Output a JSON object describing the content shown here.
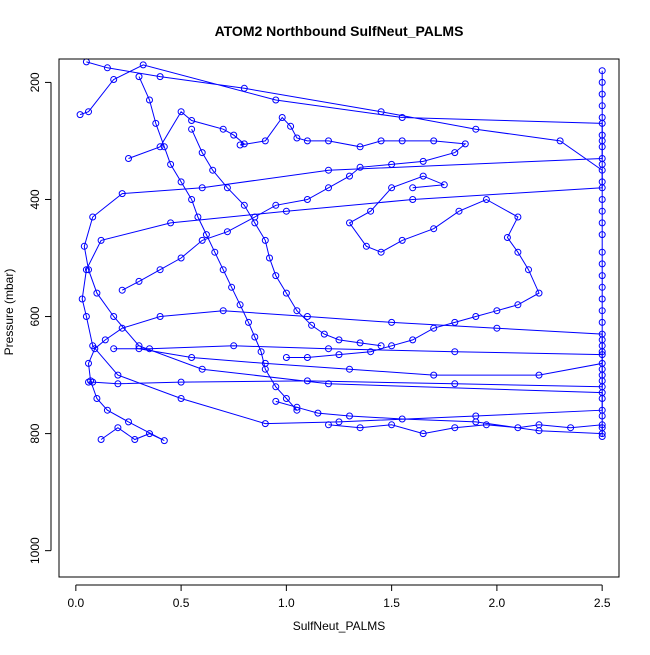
{
  "chart_data": {
    "type": "scatter",
    "title": "ATOM2 Northbound SulfNeut_PALMS",
    "xlabel": "SulfNeut_PALMS",
    "ylabel": "Pressure (mbar)",
    "xlim": [
      -0.08,
      2.58
    ],
    "ylim": [
      1045,
      160
    ],
    "y_reversed": true,
    "x_ticks": [
      "0.0",
      "0.5",
      "1.0",
      "1.5",
      "2.0",
      "2.5"
    ],
    "x_tick_values": [
      0.0,
      0.5,
      1.0,
      1.5,
      2.0,
      2.5
    ],
    "y_ticks": [
      "200",
      "400",
      "600",
      "800",
      "1000"
    ],
    "y_tick_values": [
      200,
      400,
      600,
      800,
      1000
    ],
    "grid": false,
    "legend": "none",
    "series_color": "#0000ff",
    "marker": "open-circle",
    "connected": true,
    "series": [
      {
        "values": [
          [
            0.02,
            255
          ],
          [
            0.06,
            250
          ],
          [
            0.18,
            195
          ],
          [
            0.32,
            170
          ],
          [
            0.95,
            230
          ],
          [
            1.55,
            260
          ],
          [
            2.5,
            270
          ],
          [
            2.5,
            300
          ],
          [
            2.5,
            330
          ],
          [
            1.2,
            350
          ],
          [
            0.6,
            380
          ],
          [
            0.22,
            390
          ],
          [
            0.08,
            430
          ],
          [
            0.04,
            480
          ],
          [
            0.06,
            520
          ],
          [
            0.1,
            560
          ],
          [
            0.18,
            600
          ],
          [
            0.3,
            650
          ],
          [
            0.6,
            690
          ],
          [
            1.2,
            715
          ],
          [
            2.5,
            730
          ],
          [
            2.5,
            760
          ],
          [
            1.9,
            770
          ],
          [
            1.25,
            780
          ],
          [
            0.9,
            783
          ],
          [
            0.5,
            740
          ],
          [
            0.2,
            700
          ],
          [
            0.08,
            650
          ],
          [
            0.05,
            600
          ],
          [
            0.03,
            570
          ],
          [
            0.05,
            520
          ],
          [
            0.12,
            470
          ],
          [
            0.45,
            440
          ],
          [
            1.0,
            420
          ],
          [
            1.6,
            400
          ],
          [
            2.5,
            380
          ],
          [
            2.5,
            350
          ],
          [
            2.3,
            300
          ],
          [
            1.9,
            280
          ],
          [
            1.45,
            250
          ],
          [
            0.8,
            210
          ],
          [
            0.4,
            190
          ],
          [
            0.15,
            175
          ],
          [
            0.05,
            165
          ]
        ]
      },
      {
        "values": [
          [
            0.12,
            810
          ],
          [
            0.2,
            790
          ],
          [
            0.28,
            810
          ],
          [
            0.35,
            800
          ],
          [
            0.42,
            812
          ],
          [
            0.25,
            780
          ],
          [
            0.15,
            760
          ],
          [
            0.1,
            740
          ],
          [
            0.07,
            710
          ],
          [
            0.06,
            680
          ],
          [
            0.09,
            655
          ],
          [
            0.14,
            640
          ],
          [
            0.22,
            620
          ],
          [
            0.4,
            600
          ],
          [
            0.7,
            590
          ],
          [
            1.1,
            600
          ],
          [
            1.5,
            610
          ],
          [
            2.0,
            620
          ],
          [
            2.5,
            630
          ],
          [
            2.5,
            650
          ],
          [
            2.5,
            680
          ],
          [
            2.2,
            700
          ],
          [
            1.7,
            700
          ],
          [
            1.3,
            690
          ],
          [
            0.9,
            680
          ],
          [
            0.55,
            670
          ],
          [
            0.3,
            655
          ],
          [
            0.18,
            655
          ],
          [
            0.35,
            655
          ],
          [
            0.75,
            650
          ],
          [
            1.2,
            655
          ],
          [
            1.8,
            660
          ],
          [
            2.5,
            665
          ],
          [
            2.5,
            700
          ],
          [
            2.5,
            720
          ],
          [
            1.8,
            715
          ],
          [
            1.1,
            710
          ],
          [
            0.5,
            712
          ],
          [
            0.2,
            715
          ],
          [
            0.08,
            712
          ],
          [
            0.06,
            712
          ]
        ]
      },
      {
        "values": [
          [
            0.25,
            330
          ],
          [
            0.4,
            310
          ],
          [
            0.5,
            250
          ],
          [
            0.55,
            265
          ],
          [
            0.7,
            280
          ],
          [
            0.75,
            290
          ],
          [
            0.8,
            305
          ],
          [
            0.78,
            307
          ],
          [
            0.9,
            300
          ],
          [
            0.98,
            260
          ],
          [
            1.02,
            275
          ],
          [
            1.05,
            295
          ],
          [
            1.1,
            300
          ],
          [
            1.2,
            300
          ],
          [
            1.35,
            310
          ],
          [
            1.45,
            300
          ],
          [
            1.55,
            300
          ],
          [
            1.7,
            300
          ],
          [
            1.85,
            305
          ],
          [
            1.8,
            320
          ],
          [
            1.65,
            335
          ],
          [
            1.5,
            340
          ],
          [
            1.35,
            345
          ],
          [
            1.3,
            360
          ],
          [
            1.2,
            380
          ],
          [
            1.1,
            400
          ],
          [
            0.95,
            410
          ],
          [
            0.85,
            430
          ],
          [
            0.72,
            455
          ],
          [
            0.6,
            470
          ],
          [
            0.5,
            500
          ],
          [
            0.4,
            520
          ],
          [
            0.3,
            540
          ],
          [
            0.22,
            555
          ]
        ]
      },
      {
        "values": [
          [
            2.5,
            180
          ],
          [
            2.5,
            200
          ],
          [
            2.5,
            220
          ],
          [
            2.5,
            240
          ],
          [
            2.5,
            260
          ],
          [
            2.5,
            290
          ],
          [
            2.5,
            310
          ],
          [
            2.5,
            340
          ],
          [
            2.5,
            370
          ],
          [
            2.5,
            400
          ],
          [
            2.5,
            420
          ],
          [
            2.5,
            440
          ],
          [
            2.5,
            460
          ],
          [
            2.5,
            490
          ],
          [
            2.5,
            510
          ],
          [
            2.5,
            530
          ],
          [
            2.5,
            550
          ],
          [
            2.5,
            570
          ],
          [
            2.5,
            590
          ],
          [
            2.5,
            610
          ],
          [
            2.5,
            640
          ],
          [
            2.5,
            660
          ],
          [
            2.5,
            690
          ],
          [
            2.5,
            710
          ],
          [
            2.5,
            740
          ],
          [
            2.5,
            770
          ],
          [
            2.5,
            790
          ],
          [
            2.5,
            805
          ]
        ]
      },
      {
        "values": [
          [
            1.6,
            380
          ],
          [
            1.75,
            375
          ],
          [
            1.65,
            360
          ],
          [
            1.5,
            380
          ],
          [
            1.4,
            420
          ],
          [
            1.3,
            440
          ],
          [
            1.38,
            480
          ],
          [
            1.45,
            490
          ],
          [
            1.55,
            470
          ],
          [
            1.7,
            450
          ],
          [
            1.82,
            420
          ],
          [
            1.95,
            400
          ],
          [
            2.1,
            430
          ],
          [
            2.05,
            465
          ],
          [
            2.1,
            490
          ],
          [
            2.15,
            520
          ],
          [
            2.2,
            560
          ],
          [
            2.1,
            580
          ],
          [
            2.0,
            590
          ],
          [
            1.9,
            600
          ],
          [
            1.8,
            610
          ],
          [
            1.7,
            620
          ],
          [
            1.6,
            640
          ],
          [
            1.5,
            650
          ],
          [
            1.4,
            660
          ],
          [
            1.25,
            665
          ],
          [
            1.1,
            670
          ],
          [
            1.0,
            670
          ]
        ]
      },
      {
        "values": [
          [
            1.2,
            785
          ],
          [
            1.35,
            790
          ],
          [
            1.5,
            785
          ],
          [
            1.65,
            800
          ],
          [
            1.8,
            790
          ],
          [
            1.95,
            785
          ],
          [
            2.1,
            790
          ],
          [
            2.2,
            785
          ],
          [
            2.35,
            790
          ],
          [
            2.5,
            785
          ],
          [
            2.5,
            800
          ],
          [
            2.2,
            795
          ],
          [
            1.9,
            780
          ],
          [
            1.55,
            775
          ],
          [
            1.3,
            770
          ],
          [
            1.15,
            765
          ],
          [
            1.05,
            755
          ],
          [
            0.95,
            745
          ]
        ]
      },
      {
        "values": [
          [
            0.55,
            280
          ],
          [
            0.6,
            320
          ],
          [
            0.65,
            350
          ],
          [
            0.72,
            380
          ],
          [
            0.8,
            410
          ],
          [
            0.85,
            440
          ],
          [
            0.9,
            470
          ],
          [
            0.92,
            500
          ],
          [
            0.95,
            530
          ],
          [
            1.0,
            560
          ],
          [
            1.05,
            590
          ],
          [
            1.12,
            615
          ],
          [
            1.18,
            630
          ],
          [
            1.25,
            640
          ],
          [
            1.35,
            645
          ],
          [
            1.45,
            650
          ]
        ]
      },
      {
        "values": [
          [
            0.3,
            190
          ],
          [
            0.35,
            230
          ],
          [
            0.38,
            270
          ],
          [
            0.42,
            310
          ],
          [
            0.45,
            340
          ],
          [
            0.5,
            370
          ],
          [
            0.55,
            400
          ],
          [
            0.58,
            430
          ],
          [
            0.62,
            460
          ],
          [
            0.66,
            490
          ],
          [
            0.7,
            520
          ],
          [
            0.74,
            550
          ],
          [
            0.78,
            580
          ],
          [
            0.82,
            610
          ],
          [
            0.85,
            635
          ],
          [
            0.88,
            660
          ],
          [
            0.9,
            690
          ],
          [
            0.95,
            720
          ],
          [
            1.0,
            740
          ],
          [
            1.05,
            760
          ]
        ]
      }
    ]
  }
}
